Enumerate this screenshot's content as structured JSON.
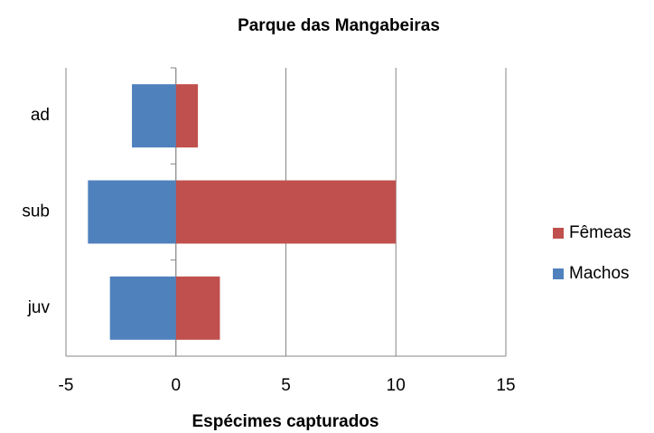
{
  "chart_data": {
    "type": "bar",
    "orientation": "horizontal",
    "title": "Parque das Mangabeiras",
    "x_label": "Espécimes capturados",
    "categories": [
      "ad",
      "sub",
      "juv"
    ],
    "series": [
      {
        "name": "Fêmeas",
        "color": "#c0504d",
        "values": [
          1,
          10,
          2
        ]
      },
      {
        "name": "Machos",
        "color": "#4f81bd",
        "values": [
          -2,
          -4,
          -3
        ]
      }
    ],
    "xlim": [
      -5,
      15
    ],
    "xticks": [
      -5,
      0,
      5,
      10,
      15
    ],
    "grid": true,
    "legend": "right"
  }
}
